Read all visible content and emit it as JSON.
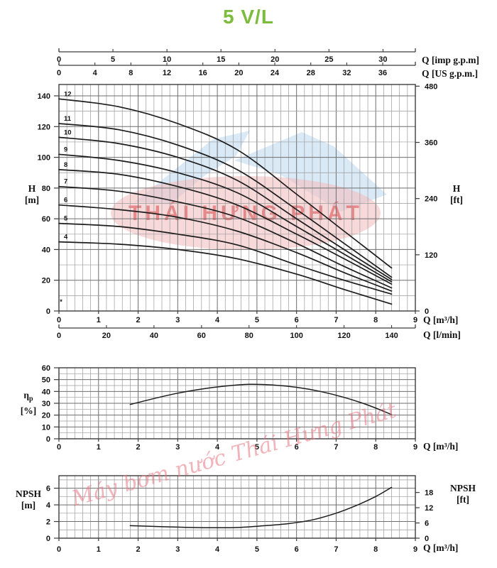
{
  "title": "5 V/L",
  "colors": {
    "title_green": "#7dbb3c",
    "curve": "#1c1c1c",
    "grid_minor": "#9b9b9b",
    "grid_major": "#6e6e6e",
    "box": "#3c3c3c",
    "tick_text": "#111111",
    "wm_blue": "#b9d7ee",
    "wm_pink": "#f3bfc1",
    "wm_red": "rgba(214,58,58,0.5)",
    "wm_script": "rgba(232,118,132,0.55)"
  },
  "watermark": {
    "logo_text": "THÁI HƯNG PHÁT",
    "script_text": "Máy bơm nước Thái Hưng Phát"
  },
  "top_axes": {
    "imp": {
      "unit_label": "Q [imp g.p.m]",
      "ticks": [
        0,
        5,
        10,
        15,
        20,
        25,
        30
      ],
      "m3h_per_unit": 0.27276
    },
    "us": {
      "unit_label": "Q [US g.p.m.]",
      "ticks": [
        0,
        4,
        8,
        12,
        16,
        20,
        24,
        28,
        32,
        36
      ],
      "m3h_per_unit": 0.22712
    }
  },
  "chart_data": [
    {
      "type": "line",
      "name": "head-curves",
      "xlabel": "Q [m³/h]",
      "xlabel2": "Q [l/min]",
      "ylabel_left_line1": "H",
      "ylabel_left_line2": "[m]",
      "ylabel_right_line1": "H",
      "ylabel_right_line2": "[ft]",
      "xlim": [
        0,
        9
      ],
      "ylim_m": [
        0,
        147.4
      ],
      "x_ticks": [
        0,
        1,
        2,
        3,
        4,
        5,
        6,
        7,
        8,
        9
      ],
      "y_ticks_m": [
        0,
        20,
        40,
        60,
        80,
        100,
        120,
        140
      ],
      "y_ticks_ft": [
        0,
        120,
        240,
        360,
        480
      ],
      "lmin_ticks": [
        0,
        20,
        40,
        60,
        80,
        100,
        120,
        140
      ],
      "grid": {
        "x_minor_step": 0.2,
        "y_minor_step": 10
      },
      "footnote_marker": "*",
      "series": [
        {
          "name": "12",
          "points": [
            [
              0,
              138
            ],
            [
              1.5,
              133
            ],
            [
              3,
              122
            ],
            [
              4.5,
              105
            ],
            [
              6,
              76
            ],
            [
              7.2,
              52
            ],
            [
              8.4,
              28
            ]
          ]
        },
        {
          "name": "11",
          "points": [
            [
              0,
              122
            ],
            [
              1.5,
              118
            ],
            [
              3,
              108
            ],
            [
              4.5,
              92
            ],
            [
              6,
              66
            ],
            [
              7.2,
              44
            ],
            [
              8.4,
              22
            ]
          ]
        },
        {
          "name": "10",
          "points": [
            [
              0,
              113
            ],
            [
              1.5,
              109
            ],
            [
              3,
              100
            ],
            [
              4.5,
              85
            ],
            [
              6,
              60
            ],
            [
              7.2,
              40
            ],
            [
              8.4,
              20.5
            ]
          ]
        },
        {
          "name": "9",
          "points": [
            [
              0,
              102
            ],
            [
              1.5,
              98
            ],
            [
              3,
              90
            ],
            [
              4.5,
              77
            ],
            [
              6,
              55
            ],
            [
              7.2,
              37
            ],
            [
              8.4,
              19
            ]
          ]
        },
        {
          "name": "8",
          "points": [
            [
              0,
              92
            ],
            [
              1.5,
              89
            ],
            [
              3,
              81
            ],
            [
              4.5,
              69
            ],
            [
              6,
              50
            ],
            [
              7.2,
              34
            ],
            [
              8.4,
              17.5
            ]
          ]
        },
        {
          "name": "7",
          "points": [
            [
              0,
              81
            ],
            [
              1.5,
              78
            ],
            [
              3,
              71
            ],
            [
              4.5,
              61
            ],
            [
              6,
              44
            ],
            [
              7.2,
              29
            ],
            [
              8.4,
              15
            ]
          ]
        },
        {
          "name": "6",
          "points": [
            [
              0,
              69
            ],
            [
              1.5,
              66
            ],
            [
              3,
              61
            ],
            [
              4.5,
              52
            ],
            [
              6,
              38
            ],
            [
              7.2,
              25
            ],
            [
              8.4,
              13
            ]
          ]
        },
        {
          "name": "5",
          "points": [
            [
              0,
              57
            ],
            [
              1.5,
              55
            ],
            [
              3,
              50
            ],
            [
              4.5,
              43
            ],
            [
              6,
              30
            ],
            [
              7.2,
              20
            ],
            [
              8.4,
              11
            ]
          ]
        },
        {
          "name": "4",
          "points": [
            [
              0,
              45
            ],
            [
              1.5,
              43.5
            ],
            [
              3,
              40
            ],
            [
              4.5,
              34
            ],
            [
              6,
              24
            ],
            [
              7.2,
              14
            ],
            [
              8.4,
              4.5
            ]
          ]
        }
      ]
    },
    {
      "type": "line",
      "name": "efficiency",
      "xlabel": "Q [m³/h]",
      "ylabel_main": "η",
      "ylabel_sub": "p",
      "ylabel_unit": "[%]",
      "xlim": [
        0,
        9
      ],
      "ylim": [
        0,
        60
      ],
      "x_ticks": [
        0,
        1,
        2,
        3,
        4,
        5,
        6,
        7,
        8,
        9
      ],
      "y_ticks": [
        0,
        10,
        20,
        30,
        40,
        50,
        60
      ],
      "grid": {
        "x_minor_step": 0.2,
        "y_minor_step": 5
      },
      "series": [
        {
          "name": "ηp",
          "points": [
            [
              1.8,
              29
            ],
            [
              2.4,
              34
            ],
            [
              3,
              38.5
            ],
            [
              3.6,
              42
            ],
            [
              4.2,
              44.5
            ],
            [
              4.8,
              46
            ],
            [
              5.4,
              45.5
            ],
            [
              6,
              43.5
            ],
            [
              6.6,
              40
            ],
            [
              7.2,
              35
            ],
            [
              7.8,
              28.5
            ],
            [
              8.4,
              20.5
            ]
          ]
        }
      ]
    },
    {
      "type": "line",
      "name": "npsh",
      "xlabel": "Q [m³/h]",
      "ylabel_left_line1": "NPSH",
      "ylabel_left_line2": "[m]",
      "ylabel_right_line1": "NPSH",
      "ylabel_right_line2": "[ft]",
      "xlim": [
        0,
        9
      ],
      "ylim_m": [
        0,
        7.5
      ],
      "x_ticks": [
        0,
        1,
        2,
        3,
        4,
        5,
        6,
        7,
        8,
        9
      ],
      "y_ticks_m": [
        0,
        2,
        4,
        6
      ],
      "y_ticks_ft": [
        0,
        6,
        12,
        18
      ],
      "grid": {
        "x_minor_step": 0.2,
        "y_minor_step": 1
      },
      "series": [
        {
          "name": "NPSH",
          "points": [
            [
              1.8,
              1.5
            ],
            [
              2.5,
              1.4
            ],
            [
              3.2,
              1.3
            ],
            [
              4,
              1.25
            ],
            [
              4.6,
              1.3
            ],
            [
              5.2,
              1.5
            ],
            [
              5.8,
              1.75
            ],
            [
              6.4,
              2.2
            ],
            [
              7,
              3.0
            ],
            [
              7.5,
              3.9
            ],
            [
              8,
              5.0
            ],
            [
              8.4,
              6.1
            ]
          ]
        }
      ]
    }
  ]
}
